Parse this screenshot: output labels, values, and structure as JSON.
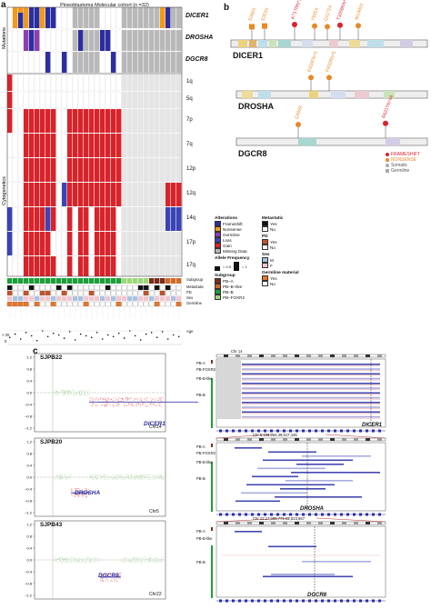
{
  "panel_a": {
    "letter": "a",
    "title": "Pineoblastoma Molecular cohort (n =32)",
    "side_labels": [
      "Mutations",
      "Cytogenetics"
    ],
    "gene_rows": [
      "DICER1",
      "DROSHA",
      "DGCR8"
    ],
    "cyto_rows": [
      "1q",
      "5q",
      "7p",
      "7q",
      "12p",
      "12q",
      "14q",
      "17p",
      "17q"
    ],
    "track_rows": [
      "Subgroup",
      "Metastatic",
      "PD",
      "Sex",
      "Germline",
      "Age"
    ],
    "age_axis": [
      "> 20",
      "0"
    ],
    "legend": {
      "alterations_title": "Alterations",
      "alterations": [
        "Frameshift",
        "Nonsense",
        "Germline",
        "Loss",
        "Gain",
        "Missing Data"
      ],
      "allele_title": "Allele Frequency",
      "allele_low": "< 0.5",
      "allele_high": "= 1",
      "subgroup_title": "Subgroup",
      "subgroups": [
        "PB–A",
        "PB–B–like",
        "PB–B",
        "PB–FOXR2"
      ],
      "metastatic_title": "Metastatic",
      "metastatic": [
        "Yes",
        "No"
      ],
      "pd_title": "PD",
      "pd": [
        "Yes",
        "No"
      ],
      "sex_title": "Sex",
      "sex": [
        "M",
        "F"
      ],
      "germline_title": "Germline material",
      "germline": [
        "Yes",
        "No"
      ]
    },
    "colors": {
      "frameshift": "#2b2f9e",
      "nonsense": "#f29a1a",
      "germline": "#8d3fb1",
      "loss": "#3b44b5",
      "gain": "#d9232a",
      "missing": "#b5b5b5",
      "pba": "#7a2d1c",
      "pbblike": "#cf6b28",
      "pbb": "#1e9e3a",
      "foxr2": "#9ed77a"
    }
  },
  "panel_b": {
    "letter": "b",
    "proteins": [
      {
        "name": "DICER1",
        "mutations": [
          "S260X",
          "S353X",
          "K717Rfs*3",
          "Y935X",
          "Q1172X",
          "T1058Kfs*5",
          "W1302X"
        ]
      },
      {
        "name": "DROSHA",
        "mutations": [
          "E650Ffs*3",
          "F932Rfs*5"
        ]
      },
      {
        "name": "DGCR8",
        "mutations": [
          "Q469X",
          "R621Tfs*44"
        ]
      }
    ],
    "legend": [
      "FRAMESHIFT",
      "NONSENSE",
      "Somatic",
      "Germline"
    ]
  },
  "panel_c": {
    "letter": "c",
    "plots": [
      {
        "sample": "SJPB22",
        "gene": "DICER1",
        "chr": "Chr14"
      },
      {
        "sample": "SJPB20",
        "gene": "DROSHA",
        "chr": "Chr5"
      },
      {
        "sample": "SJPB43",
        "gene": "DGCR8",
        "chr": "Chr22"
      }
    ],
    "yticks": [
      "1.2",
      "0.8",
      "0.4",
      "0.0",
      "–0.4",
      "–0.8",
      "–1.2"
    ],
    "tracks": [
      {
        "header": "Chr 14",
        "gene": "DICER1",
        "groups": [
          "PB-A",
          "PB-FOXR2",
          "PB-B-like",
          "PB-B"
        ]
      },
      {
        "header": "Chr 5:109,964,49,517,446",
        "gene": "DROSHA",
        "groups": [
          "PB-A",
          "PB-FOXR2",
          "PB-B-like",
          "PB-B"
        ]
      },
      {
        "header": "Chr 22:17,088,771-22,823,867",
        "gene": "DGCR8",
        "groups": [
          "PB-A",
          "PB-B-like",
          "PB-B"
        ]
      }
    ]
  }
}
